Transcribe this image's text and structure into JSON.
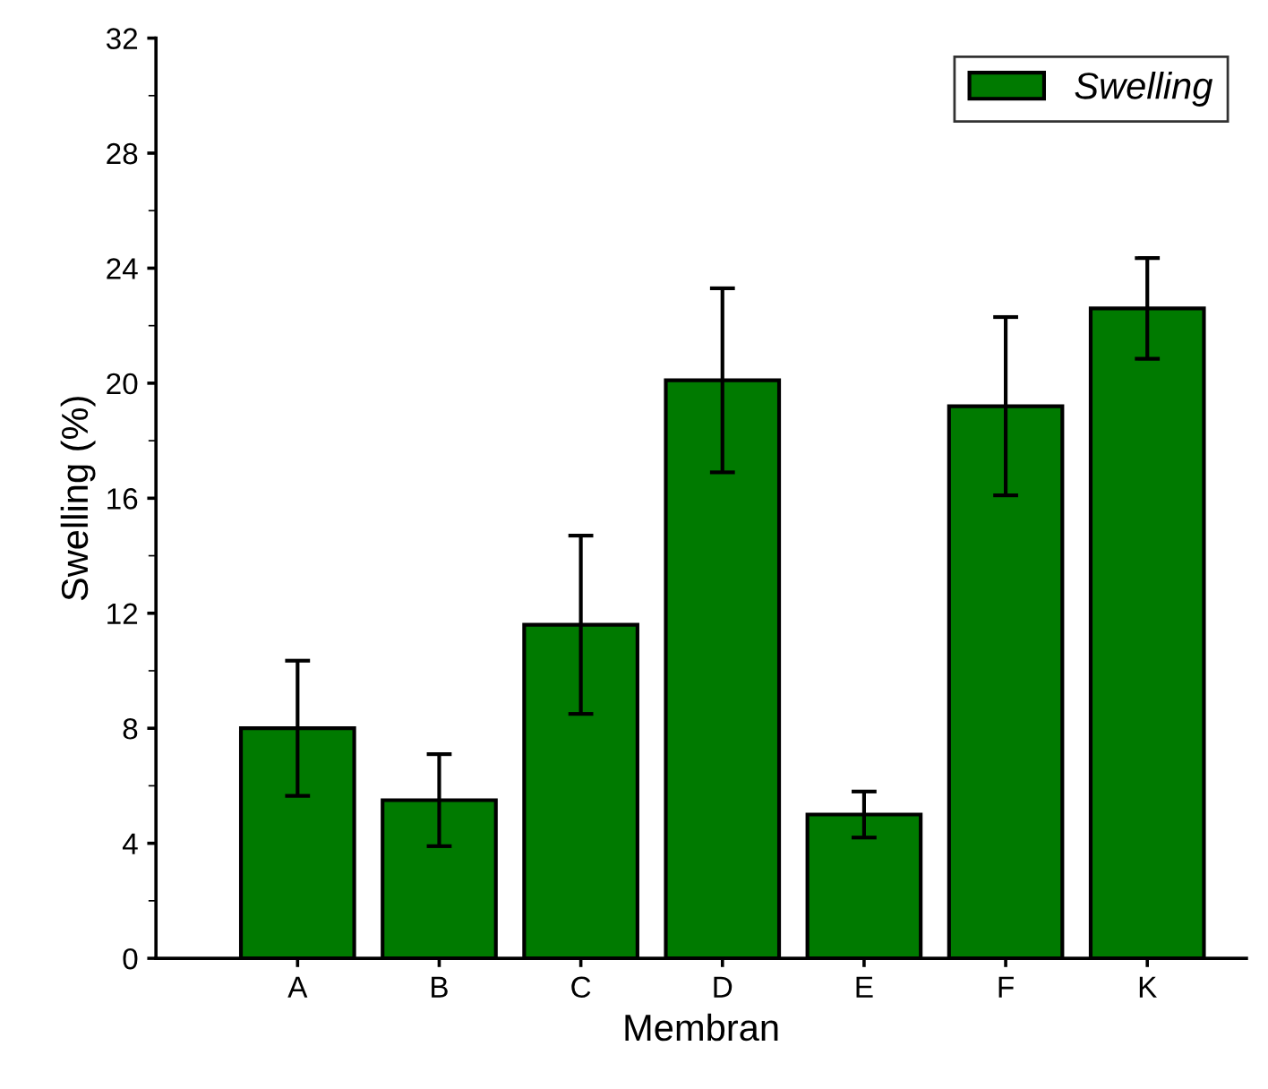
{
  "chart_data": {
    "type": "bar",
    "xlabel": "Membran",
    "ylabel": "Swelling (%)",
    "categories": [
      "A",
      "B",
      "C",
      "D",
      "E",
      "F",
      "K"
    ],
    "series": [
      {
        "name": "Swelling",
        "color": "#007a00",
        "values": [
          8.0,
          5.5,
          11.6,
          20.1,
          5.0,
          19.2,
          22.6
        ],
        "errors": [
          2.35,
          1.6,
          3.1,
          3.2,
          0.8,
          3.1,
          1.75
        ]
      }
    ],
    "ylim": [
      0,
      32
    ],
    "yticks": [
      0,
      4,
      8,
      12,
      16,
      20,
      24,
      28,
      32
    ],
    "legend": "top right",
    "grid": false
  }
}
